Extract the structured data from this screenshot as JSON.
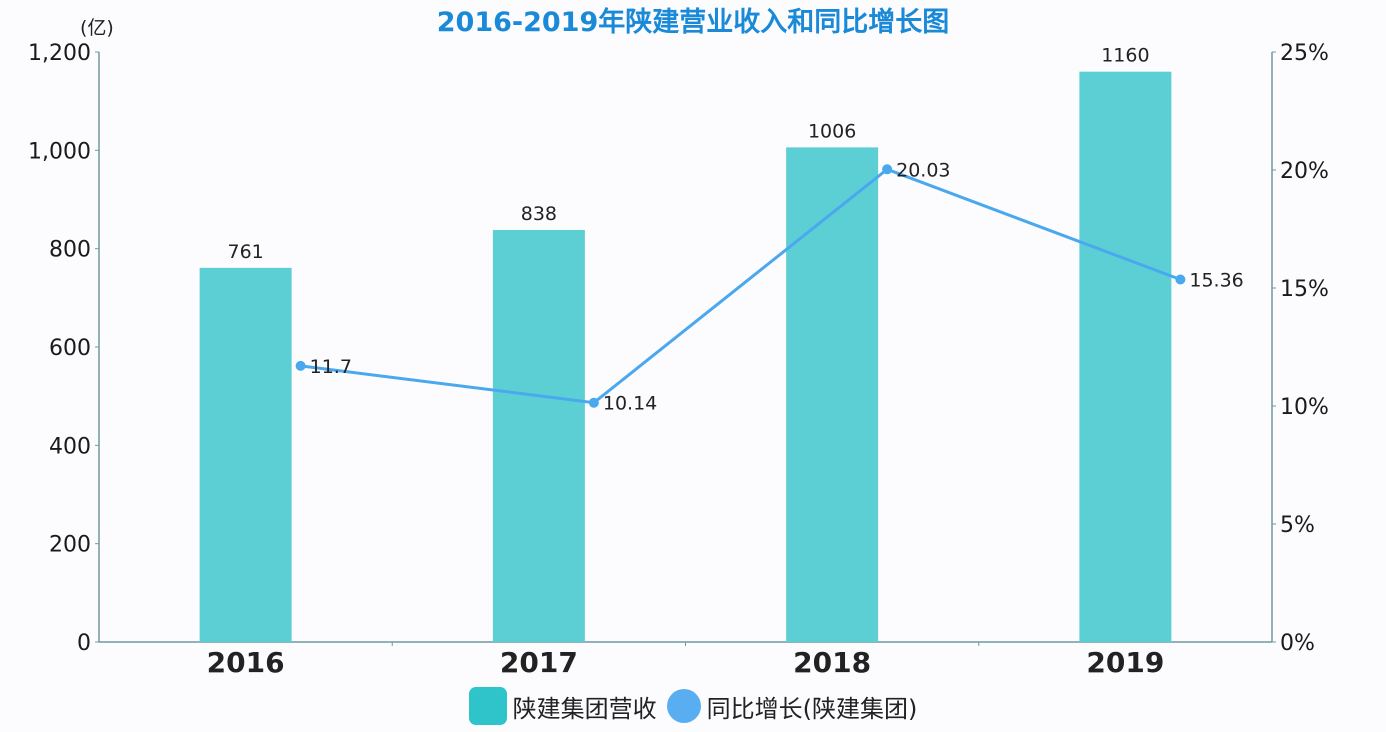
{
  "chart_data": {
    "type": "bar+line",
    "title": "2016-2019年陕建营业收入和同比增长图",
    "categories": [
      "2016",
      "2017",
      "2018",
      "2019"
    ],
    "series": [
      {
        "name": "陕建集团营收",
        "type": "bar",
        "axis": "left",
        "values": [
          761,
          838,
          1006,
          1160
        ],
        "labels": [
          "761",
          "838",
          "1006",
          "1160"
        ],
        "color": "#5ccfd4"
      },
      {
        "name": "同比增长(陕建集团)",
        "type": "line",
        "axis": "right",
        "values": [
          11.7,
          10.14,
          20.03,
          15.36
        ],
        "labels": [
          "11.7",
          "10.14",
          "20.03",
          "15.36"
        ],
        "color": "#4aa8ee"
      }
    ],
    "left_axis": {
      "unit": "(亿)",
      "ylim": [
        0,
        1200
      ],
      "ticks": [
        0,
        200,
        400,
        600,
        800,
        1000,
        1200
      ],
      "tick_labels": [
        "0",
        "200",
        "400",
        "600",
        "800",
        "1,000",
        "1,200"
      ]
    },
    "right_axis": {
      "ylim": [
        0,
        25
      ],
      "ticks": [
        0,
        5,
        10,
        15,
        20,
        25
      ],
      "tick_labels": [
        "0%",
        "5%",
        "10%",
        "15%",
        "20%",
        "25%"
      ]
    },
    "grid": false,
    "legend_position": "bottom",
    "xlabel": "",
    "ylabel": "(亿)"
  },
  "legend": {
    "items": [
      {
        "label": "陕建集团营收",
        "color": "#2ec4c9",
        "shape": "square"
      },
      {
        "label": "同比增长(陕建集团)",
        "color": "#58aef0",
        "shape": "circle"
      }
    ]
  },
  "colors": {
    "title": "#1a8ad8",
    "axis": "#6f9aa0",
    "bar": "#5ccfd4",
    "line": "#4aa8ee"
  }
}
